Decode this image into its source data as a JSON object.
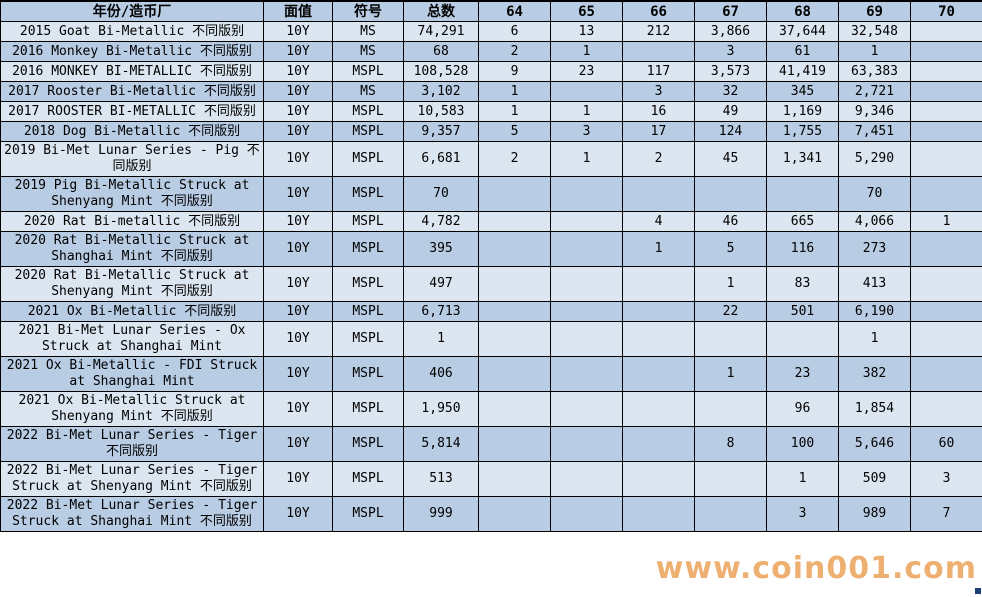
{
  "table": {
    "columns": [
      "年份/造币厂",
      "面值",
      "符号",
      "总数",
      "64",
      "65",
      "66",
      "67",
      "68",
      "69",
      "70"
    ],
    "rows": [
      [
        "2015 Goat Bi-Metallic 不同版别",
        "10Y",
        "MS",
        "74,291",
        "6",
        "13",
        "212",
        "3,866",
        "37,644",
        "32,548",
        ""
      ],
      [
        "2016 Monkey Bi-Metallic 不同版别",
        "10Y",
        "MS",
        "68",
        "2",
        "1",
        "",
        "3",
        "61",
        "1",
        ""
      ],
      [
        "2016 MONKEY BI-METALLIC 不同版别",
        "10Y",
        "MSPL",
        "108,528",
        "9",
        "23",
        "117",
        "3,573",
        "41,419",
        "63,383",
        ""
      ],
      [
        "2017 Rooster Bi-Metallic 不同版别",
        "10Y",
        "MS",
        "3,102",
        "1",
        "",
        "3",
        "32",
        "345",
        "2,721",
        ""
      ],
      [
        "2017 ROOSTER BI-METALLIC 不同版别",
        "10Y",
        "MSPL",
        "10,583",
        "1",
        "1",
        "16",
        "49",
        "1,169",
        "9,346",
        ""
      ],
      [
        "2018 Dog Bi-Metallic 不同版别",
        "10Y",
        "MSPL",
        "9,357",
        "5",
        "3",
        "17",
        "124",
        "1,755",
        "7,451",
        ""
      ],
      [
        "2019 Bi-Met Lunar Series - Pig 不同版别",
        "10Y",
        "MSPL",
        "6,681",
        "2",
        "1",
        "2",
        "45",
        "1,341",
        "5,290",
        ""
      ],
      [
        "2019 Pig Bi-Metallic Struck at Shenyang Mint 不同版别",
        "10Y",
        "MSPL",
        "70",
        "",
        "",
        "",
        "",
        "",
        "70",
        ""
      ],
      [
        "2020 Rat Bi-metallic 不同版别",
        "10Y",
        "MSPL",
        "4,782",
        "",
        "",
        "4",
        "46",
        "665",
        "4,066",
        "1"
      ],
      [
        "2020 Rat Bi-Metallic Struck at Shanghai Mint 不同版别",
        "10Y",
        "MSPL",
        "395",
        "",
        "",
        "1",
        "5",
        "116",
        "273",
        ""
      ],
      [
        "2020 Rat Bi-Metallic Struck at Shenyang Mint 不同版别",
        "10Y",
        "MSPL",
        "497",
        "",
        "",
        "",
        "1",
        "83",
        "413",
        ""
      ],
      [
        "2021 Ox Bi-Metallic 不同版别",
        "10Y",
        "MSPL",
        "6,713",
        "",
        "",
        "",
        "22",
        "501",
        "6,190",
        ""
      ],
      [
        "2021 Bi-Met Lunar Series - Ox Struck at Shanghai Mint",
        "10Y",
        "MSPL",
        "1",
        "",
        "",
        "",
        "",
        "",
        "1",
        ""
      ],
      [
        "2021 Ox Bi-Metallic - FDI Struck at Shanghai Mint",
        "10Y",
        "MSPL",
        "406",
        "",
        "",
        "",
        "1",
        "23",
        "382",
        ""
      ],
      [
        "2021 Ox Bi-Metallic Struck at Shenyang Mint 不同版别",
        "10Y",
        "MSPL",
        "1,950",
        "",
        "",
        "",
        "",
        "96",
        "1,854",
        ""
      ],
      [
        "2022 Bi-Met Lunar Series - Tiger 不同版别",
        "10Y",
        "MSPL",
        "5,814",
        "",
        "",
        "",
        "8",
        "100",
        "5,646",
        "60"
      ],
      [
        "2022 Bi-Met Lunar Series - Tiger Struck at Shenyang Mint 不同版别",
        "10Y",
        "MSPL",
        "513",
        "",
        "",
        "",
        "",
        "1",
        "509",
        "3"
      ],
      [
        "2022 Bi-Met Lunar Series - Tiger Struck at Shanghai Mint 不同版别",
        "10Y",
        "MSPL",
        "999",
        "",
        "",
        "",
        "",
        "3",
        "989",
        "7"
      ]
    ]
  },
  "watermark": {
    "text": "www.coin001.com"
  },
  "colors": {
    "row_dark": "#b8cce4",
    "row_light": "#dce6f1",
    "border": "#000000",
    "watermark_orange": "#eba258",
    "fill_handle_blue": "#1f3f77"
  }
}
